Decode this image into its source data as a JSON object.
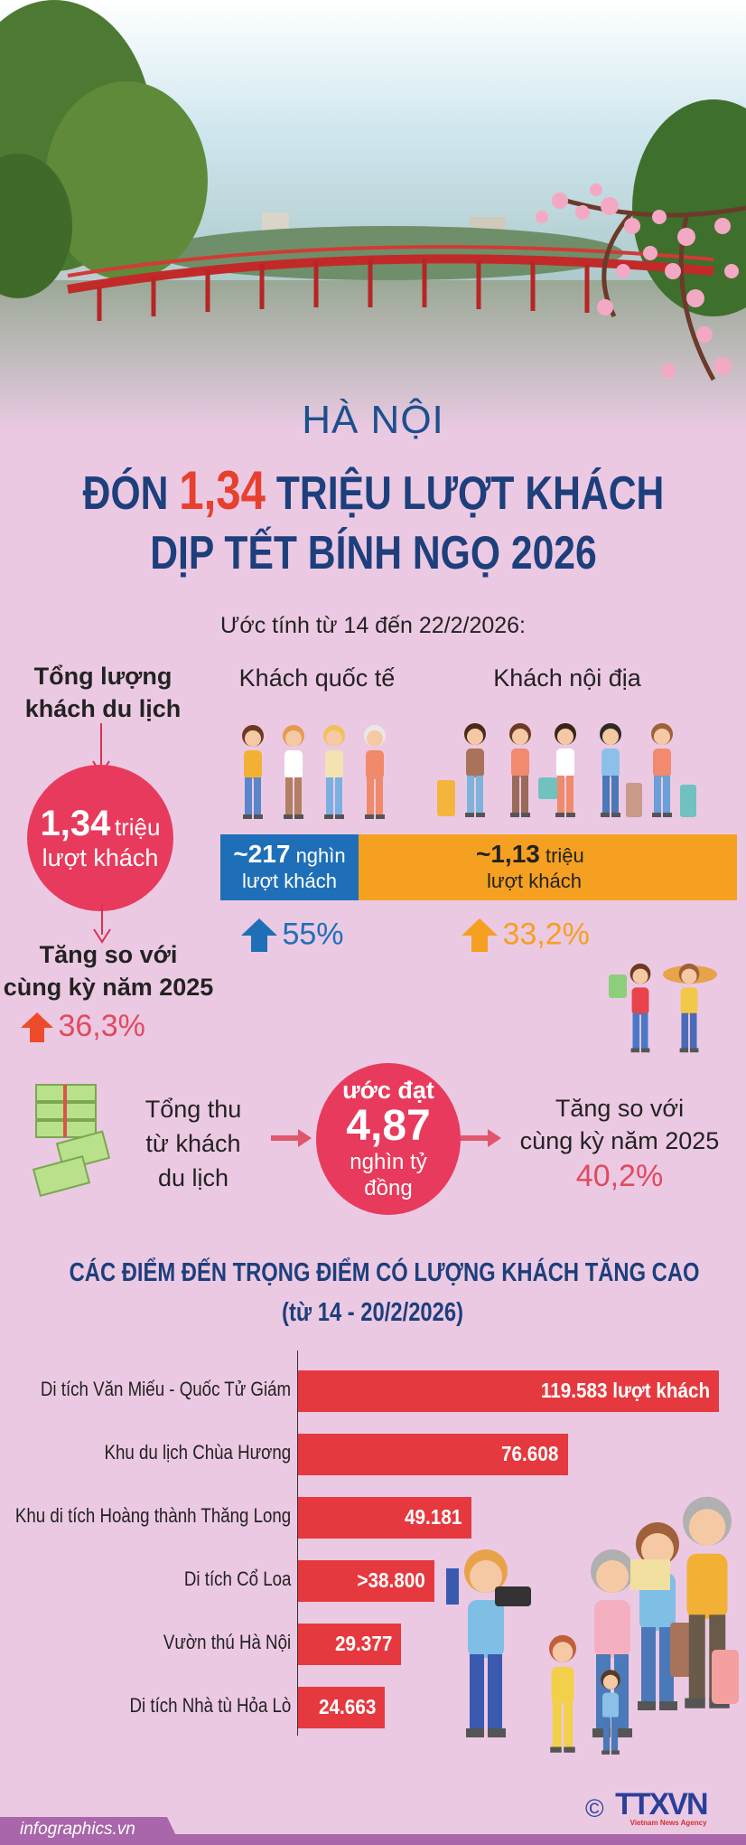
{
  "header": {
    "city": "HÀ NỘI",
    "title_prefix": "ĐÓN",
    "title_highlight": "1,34",
    "title_suffix": "TRIỆU LƯỢT KHÁCH",
    "title_line2": "DỊP TẾT BÍNH NGỌ 2026",
    "period": "Ước tính từ 14 đến 22/2/2026:"
  },
  "visitors": {
    "total_label_1": "Tổng lượng",
    "total_label_2": "khách du lịch",
    "total_value": "1,34",
    "total_unit": "triệu",
    "total_unit_2": "lượt khách",
    "growth_label_1": "Tăng so với",
    "growth_label_2": "cùng kỳ năm 2025",
    "growth": "36,3%",
    "international": {
      "label": "Khách quốc tế",
      "value": "~217",
      "unit": "nghìn",
      "unit_2": "lượt khách",
      "growth": "55%",
      "color": "#1f6fb8"
    },
    "domestic": {
      "label": "Khách nội địa",
      "value": "~1,13",
      "unit": "triệu",
      "unit_2": "lượt khách",
      "growth": "33,2%",
      "color": "#f5a020"
    }
  },
  "revenue": {
    "label_1": "Tổng thu",
    "label_2": "từ khách",
    "label_3": "du lịch",
    "prefix": "ước đạt",
    "value": "4,87",
    "unit_1": "nghìn tỷ",
    "unit_2": "đồng",
    "growth_label_1": "Tăng so với",
    "growth_label_2": "cùng kỳ năm 2025",
    "growth": "40,2%"
  },
  "chart_data": {
    "type": "bar",
    "orientation": "horizontal",
    "title": "CÁC ĐIỂM ĐẾN TRỌNG ĐIỂM CÓ LƯỢNG KHÁCH TĂNG CAO",
    "subtitle": "(từ 14 - 20/2/2026)",
    "categories": [
      "Di tích Văn Miếu - Quốc Tử Giám",
      "Khu du lịch Chùa Hương",
      "Khu di tích Hoàng thành Thăng Long",
      "Di tích Cổ Loa",
      "Vườn thú Hà Nội",
      "Di tích Nhà tù Hỏa Lò"
    ],
    "values": [
      119583,
      76608,
      49181,
      38800,
      29377,
      24663
    ],
    "value_labels": [
      "119.583 lượt khách",
      "76.608",
      "49.181",
      ">38.800",
      "29.377",
      "24.663"
    ],
    "bar_color": "#e5393f",
    "grid": false
  },
  "footer": {
    "site": "infographics.vn",
    "copyright": "©",
    "logo": "TTXVN",
    "logo_sub": "Vietnam News Agency"
  }
}
